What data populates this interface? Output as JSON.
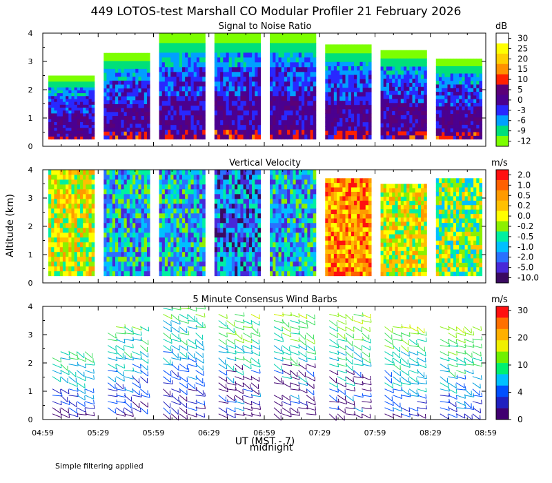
{
  "figure": {
    "title": "449 LOTOS-test Marshall CO Modular Profiler 21 February 2026",
    "y_axis_label": "Altitude (km)",
    "x_axis_label": "UT  (MST - 7)",
    "midnight_label": "midnight",
    "footnote": "Simple filtering applied"
  },
  "chart_data": [
    {
      "type": "heatmap",
      "title": "Signal to Noise Ratio",
      "colorbar_unit": "dB",
      "colorbar_labels": [
        "30",
        "25",
        "20",
        "15",
        "10",
        "5",
        "0",
        "-3",
        "-6",
        "-9",
        "-12"
      ],
      "colorbar_colors": [
        "#ffffff",
        "#ffff00",
        "#ffd000",
        "#ff9000",
        "#ff2000",
        "#5a0078",
        "#4b0090",
        "#2828ff",
        "#00a0ff",
        "#00e07a",
        "#7cff00"
      ],
      "xlabel": "UT  (MST - 7)",
      "ylabel": "Altitude (km)",
      "ylim": [
        0,
        4
      ],
      "yticks": [
        "0",
        "1",
        "2",
        "3",
        "4"
      ],
      "x_ticks": [
        "04:59",
        "05:29",
        "05:59",
        "06:29",
        "06:59",
        "07:29",
        "07:59",
        "08:29",
        "08:59"
      ],
      "xlim_minutes": [
        0,
        240
      ],
      "segments": [
        {
          "start_min": 3,
          "end_min": 28,
          "top_km": 2.5
        },
        {
          "start_min": 33,
          "end_min": 58,
          "top_km": 3.3
        },
        {
          "start_min": 63,
          "end_min": 88,
          "top_km": 4.0
        },
        {
          "start_min": 93,
          "end_min": 118,
          "top_km": 4.0
        },
        {
          "start_min": 123,
          "end_min": 148,
          "top_km": 4.0
        },
        {
          "start_min": 153,
          "end_min": 178,
          "top_km": 3.6
        },
        {
          "start_min": 183,
          "end_min": 208,
          "top_km": 3.4
        },
        {
          "start_min": 213,
          "end_min": 238,
          "top_km": 3.1
        }
      ]
    },
    {
      "type": "heatmap",
      "title": "Vertical Velocity",
      "colorbar_unit": "m/s",
      "colorbar_labels": [
        "2.0",
        "1.0",
        "0.5",
        "0.2",
        "0.0",
        "-0.2",
        "-0.5",
        "-1.0",
        "-2.0",
        "-5.0",
        "-10.0"
      ],
      "colorbar_colors": [
        "#ff1010",
        "#ff6000",
        "#ff9a00",
        "#ffc000",
        "#ffff00",
        "#8cf000",
        "#00f0a0",
        "#00c0ff",
        "#2a70ff",
        "#4828d8",
        "#3a0a60"
      ],
      "xlabel": "UT  (MST - 7)",
      "ylabel": "Altitude (km)",
      "ylim": [
        0,
        4
      ],
      "yticks": [
        "0",
        "1",
        "2",
        "3",
        "4"
      ],
      "x_ticks": [
        "04:59",
        "05:29",
        "05:59",
        "06:29",
        "06:59",
        "07:29",
        "07:59",
        "08:29",
        "08:59"
      ],
      "xlim_minutes": [
        0,
        240
      ],
      "segments": [
        {
          "start_min": 3,
          "end_min": 28,
          "top_km": 4.0
        },
        {
          "start_min": 33,
          "end_min": 58,
          "top_km": 4.0
        },
        {
          "start_min": 63,
          "end_min": 88,
          "top_km": 4.0
        },
        {
          "start_min": 93,
          "end_min": 118,
          "top_km": 4.0
        },
        {
          "start_min": 123,
          "end_min": 148,
          "top_km": 4.0
        },
        {
          "start_min": 153,
          "end_min": 178,
          "top_km": 3.7
        },
        {
          "start_min": 183,
          "end_min": 208,
          "top_km": 3.5
        },
        {
          "start_min": 213,
          "end_min": 238,
          "top_km": 3.7
        }
      ]
    },
    {
      "type": "scatter",
      "title": "5 Minute Consensus Wind Barbs",
      "colorbar_unit": "m/s",
      "colorbar_labels": [
        "30",
        "20",
        "10",
        "4",
        "0"
      ],
      "colorbar_colors": [
        "#ff1010",
        "#ff7000",
        "#ffb000",
        "#f0f000",
        "#70f000",
        "#00f070",
        "#00c0ff",
        "#0050ff",
        "#2020c0",
        "#400070"
      ],
      "xlabel": "UT  (MST - 7)",
      "ylabel": "Altitude (km)",
      "ylim": [
        0,
        4
      ],
      "yticks": [
        "0",
        "1",
        "2",
        "3",
        "4"
      ],
      "x_ticks": [
        "04:59",
        "05:29",
        "05:59",
        "06:29",
        "06:59",
        "07:29",
        "07:59",
        "08:29",
        "08:59"
      ],
      "xlim_minutes": [
        0,
        240
      ],
      "segments": [
        {
          "start_min": 3,
          "end_min": 28,
          "top_km": 2.5
        },
        {
          "start_min": 33,
          "end_min": 58,
          "top_km": 3.3
        },
        {
          "start_min": 63,
          "end_min": 88,
          "top_km": 4.0
        },
        {
          "start_min": 93,
          "end_min": 118,
          "top_km": 3.9
        },
        {
          "start_min": 123,
          "end_min": 148,
          "top_km": 3.9
        },
        {
          "start_min": 153,
          "end_min": 178,
          "top_km": 3.8
        },
        {
          "start_min": 183,
          "end_min": 208,
          "top_km": 3.5
        },
        {
          "start_min": 213,
          "end_min": 238,
          "top_km": 3.4
        }
      ]
    }
  ]
}
